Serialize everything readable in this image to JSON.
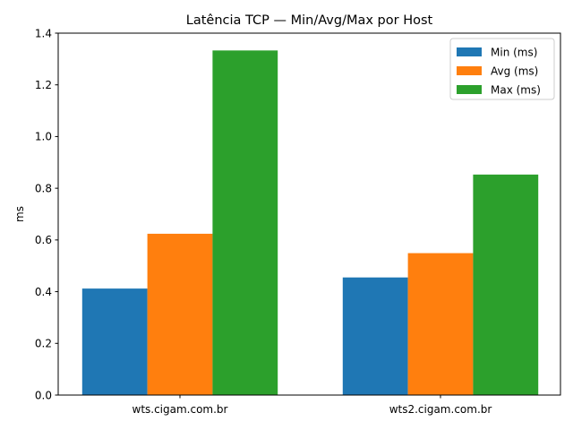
{
  "chart_data": {
    "type": "bar",
    "title": "Latência TCP — Min/Avg/Max por Host",
    "xlabel": "",
    "ylabel": "ms",
    "categories": [
      "wts.cigam.com.br",
      "wts2.cigam.com.br"
    ],
    "series": [
      {
        "name": "Min (ms)",
        "values": [
          0.412,
          0.455
        ],
        "color": "#1f77b4"
      },
      {
        "name": "Avg (ms)",
        "values": [
          0.624,
          0.549
        ],
        "color": "#ff7f0e"
      },
      {
        "name": "Max (ms)",
        "values": [
          1.333,
          0.853
        ],
        "color": "#2ca02c"
      }
    ],
    "ylim": [
      0,
      1.4
    ],
    "yticks": [
      "0.0",
      "0.2",
      "0.4",
      "0.6",
      "0.8",
      "1.0",
      "1.2",
      "1.4"
    ],
    "grid": false,
    "legend": "upper right"
  }
}
